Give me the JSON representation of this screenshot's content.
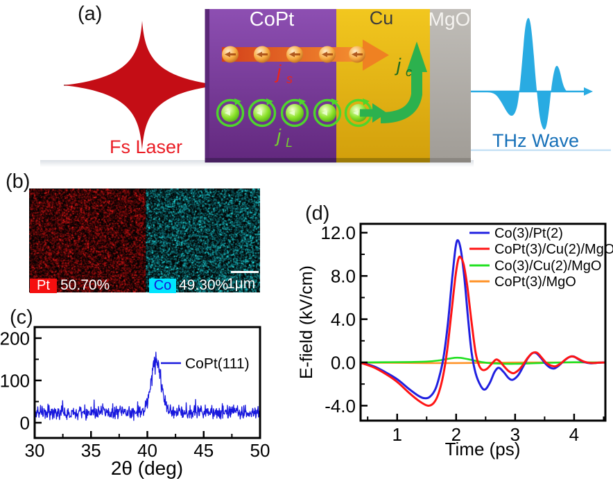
{
  "panels": {
    "a": "(a)",
    "b": "(b)",
    "c": "(c)",
    "d": "(d)"
  },
  "panel_a": {
    "fs_laser_label": "Fs Laser",
    "thz_wave_label": "THz Wave",
    "layers": [
      {
        "label": "CoPt",
        "color": "#7b3fa0",
        "text_color": "#ffffff"
      },
      {
        "label": "Cu",
        "color": "#e9bb16",
        "text_color": "#3c3c3c"
      },
      {
        "label": "MgO",
        "color": "#b6b3ae",
        "text_color": "#f5f3f0"
      }
    ],
    "currents": {
      "js": {
        "main": "j",
        "sub": "s",
        "color": "#e8251d"
      },
      "jc": {
        "main": "j",
        "sub": "c",
        "color": "#1f6b1f"
      },
      "jl": {
        "main": "j",
        "sub": "L",
        "color": "#76d22f"
      }
    },
    "laser_color": "#c40d15",
    "thz_color": "#29abe2",
    "spin_arrow_color": "#ef8122",
    "charge_arrow_color": "#2cb14e"
  },
  "panel_b": {
    "maps": [
      {
        "element": "Pt",
        "percent": "50.70%",
        "badge_color": "#f50f0f",
        "badge_text_color": "#ffffff",
        "speckle": "red"
      },
      {
        "element": "Co",
        "percent": "49.30%",
        "badge_color": "#00e5ff",
        "badge_text_color": "#1616d6",
        "speckle": "teal"
      }
    ],
    "scale_bar_label": "1μm"
  },
  "chart_data": [
    {
      "id": "xrd",
      "type": "line",
      "title": "",
      "xlabel": "2θ (deg)",
      "ylabel": "",
      "xlim": [
        30,
        50
      ],
      "ylim": [
        -36,
        226
      ],
      "xticks": [
        30,
        35,
        40,
        45,
        50
      ],
      "xminor": [
        32.5,
        37.5,
        42.5,
        47.5
      ],
      "yticks": [
        0,
        100,
        200
      ],
      "yminor": [
        50,
        150
      ],
      "grid": false,
      "legend": {
        "label": "CoPt(111)",
        "position": "right-of-peak"
      },
      "series": [
        {
          "name": "CoPt(111)",
          "color": "#1717dd",
          "noise": {
            "seed": 11,
            "baseline": 24,
            "amp": 19,
            "spike_prob": 0.05,
            "spike_amp": 28,
            "peak_center": 40.78,
            "peak_sigma": 0.45,
            "peak_height": 122,
            "points": 580
          }
        }
      ]
    },
    {
      "id": "thz-efield",
      "type": "line",
      "title": "",
      "xlabel": "Time (ps)",
      "ylabel": "E-field (kV/cm)",
      "xlim": [
        0.38,
        4.53
      ],
      "ylim": [
        -5.4,
        12.8
      ],
      "xticks": [
        1,
        2,
        3,
        4
      ],
      "xminor": [
        0.5,
        1.5,
        2.5,
        3.5,
        4.5
      ],
      "yticks": [
        12,
        8,
        4,
        0,
        -4
      ],
      "ytick_labels": [
        "12.0",
        "8.0",
        "4.0",
        "0.0",
        "-4.0"
      ],
      "yminor": [
        10,
        6,
        2,
        -2
      ],
      "grid": false,
      "legend_position": "top-right-inside",
      "series": [
        {
          "name": "Co(3)/Pt(2)",
          "color": "#2020e0",
          "width": 3,
          "points": [
            [
              0.38,
              -0.02
            ],
            [
              0.6,
              -0.35
            ],
            [
              0.8,
              -0.9
            ],
            [
              1.0,
              -1.55
            ],
            [
              1.2,
              -2.45
            ],
            [
              1.35,
              -3.05
            ],
            [
              1.45,
              -3.3
            ],
            [
              1.55,
              -3.2
            ],
            [
              1.65,
              -2.45
            ],
            [
              1.73,
              -1.0
            ],
            [
              1.79,
              0.6
            ],
            [
              1.86,
              3.6
            ],
            [
              1.93,
              7.6
            ],
            [
              1.99,
              10.6
            ],
            [
              2.03,
              11.3
            ],
            [
              2.08,
              10.4
            ],
            [
              2.14,
              7.8
            ],
            [
              2.2,
              4.2
            ],
            [
              2.26,
              1.0
            ],
            [
              2.33,
              -1.0
            ],
            [
              2.42,
              -2.2
            ],
            [
              2.49,
              -2.5
            ],
            [
              2.57,
              -1.9
            ],
            [
              2.65,
              -0.9
            ],
            [
              2.72,
              -0.5
            ],
            [
              2.8,
              -0.85
            ],
            [
              2.89,
              -1.45
            ],
            [
              2.96,
              -1.6
            ],
            [
              3.05,
              -1.2
            ],
            [
              3.13,
              -0.45
            ],
            [
              3.21,
              0.35
            ],
            [
              3.29,
              0.85
            ],
            [
              3.36,
              0.85
            ],
            [
              3.44,
              0.4
            ],
            [
              3.52,
              -0.15
            ],
            [
              3.6,
              -0.5
            ],
            [
              3.67,
              -0.55
            ],
            [
              3.75,
              -0.25
            ],
            [
              3.84,
              0.2
            ],
            [
              3.92,
              0.5
            ],
            [
              3.99,
              0.55
            ],
            [
              4.07,
              0.3
            ],
            [
              4.16,
              0.05
            ],
            [
              4.28,
              -0.08
            ],
            [
              4.4,
              -0.03
            ],
            [
              4.53,
              0.0
            ]
          ]
        },
        {
          "name": "CoPt(3)/Cu(2)/MgO",
          "color": "#ff1414",
          "width": 3,
          "points": [
            [
              0.38,
              -0.03
            ],
            [
              0.6,
              -0.45
            ],
            [
              0.8,
              -1.05
            ],
            [
              1.0,
              -1.8
            ],
            [
              1.2,
              -2.8
            ],
            [
              1.38,
              -3.6
            ],
            [
              1.52,
              -4.0
            ],
            [
              1.62,
              -3.75
            ],
            [
              1.7,
              -2.9
            ],
            [
              1.78,
              -1.2
            ],
            [
              1.85,
              1.2
            ],
            [
              1.92,
              4.6
            ],
            [
              1.99,
              8.0
            ],
            [
              2.04,
              9.6
            ],
            [
              2.08,
              9.7
            ],
            [
              2.13,
              9.0
            ],
            [
              2.19,
              7.0
            ],
            [
              2.26,
              3.8
            ],
            [
              2.33,
              0.9
            ],
            [
              2.39,
              -0.3
            ],
            [
              2.45,
              -0.7
            ],
            [
              2.52,
              -0.6
            ],
            [
              2.6,
              -0.15
            ],
            [
              2.67,
              0.25
            ],
            [
              2.73,
              0.15
            ],
            [
              2.81,
              -0.35
            ],
            [
              2.89,
              -0.8
            ],
            [
              2.97,
              -1.0
            ],
            [
              3.05,
              -0.75
            ],
            [
              3.13,
              -0.25
            ],
            [
              3.21,
              0.4
            ],
            [
              3.29,
              0.85
            ],
            [
              3.37,
              0.9
            ],
            [
              3.45,
              0.45
            ],
            [
              3.53,
              -0.05
            ],
            [
              3.61,
              -0.3
            ],
            [
              3.69,
              -0.35
            ],
            [
              3.77,
              -0.1
            ],
            [
              3.86,
              0.3
            ],
            [
              3.94,
              0.55
            ],
            [
              4.01,
              0.5
            ],
            [
              4.09,
              0.28
            ],
            [
              4.18,
              0.05
            ],
            [
              4.3,
              -0.06
            ],
            [
              4.42,
              -0.02
            ],
            [
              4.53,
              0.0
            ]
          ]
        },
        {
          "name": "Co(3)/Cu(2)/MgO",
          "color": "#1fe01f",
          "width": 2.6,
          "points": [
            [
              0.38,
              0.0
            ],
            [
              0.8,
              0.02
            ],
            [
              1.2,
              0.04
            ],
            [
              1.5,
              0.08
            ],
            [
              1.7,
              0.18
            ],
            [
              1.85,
              0.32
            ],
            [
              1.98,
              0.43
            ],
            [
              2.08,
              0.42
            ],
            [
              2.2,
              0.3
            ],
            [
              2.33,
              0.15
            ],
            [
              2.45,
              0.02
            ],
            [
              2.6,
              -0.08
            ],
            [
              2.8,
              -0.12
            ],
            [
              3.0,
              -0.13
            ],
            [
              3.2,
              -0.1
            ],
            [
              3.45,
              -0.05
            ],
            [
              3.7,
              -0.02
            ],
            [
              4.0,
              0.02
            ],
            [
              4.3,
              0.0
            ],
            [
              4.53,
              0.0
            ]
          ]
        },
        {
          "name": "CoPt(3)/MgO",
          "color": "#ff9226",
          "width": 2.6,
          "points": [
            [
              0.38,
              -0.02
            ],
            [
              1.0,
              -0.04
            ],
            [
              1.5,
              -0.06
            ],
            [
              2.0,
              -0.06
            ],
            [
              2.4,
              -0.04
            ],
            [
              2.8,
              -0.02
            ],
            [
              3.2,
              0.0
            ],
            [
              3.8,
              0.0
            ],
            [
              4.53,
              0.0
            ]
          ]
        }
      ]
    }
  ]
}
